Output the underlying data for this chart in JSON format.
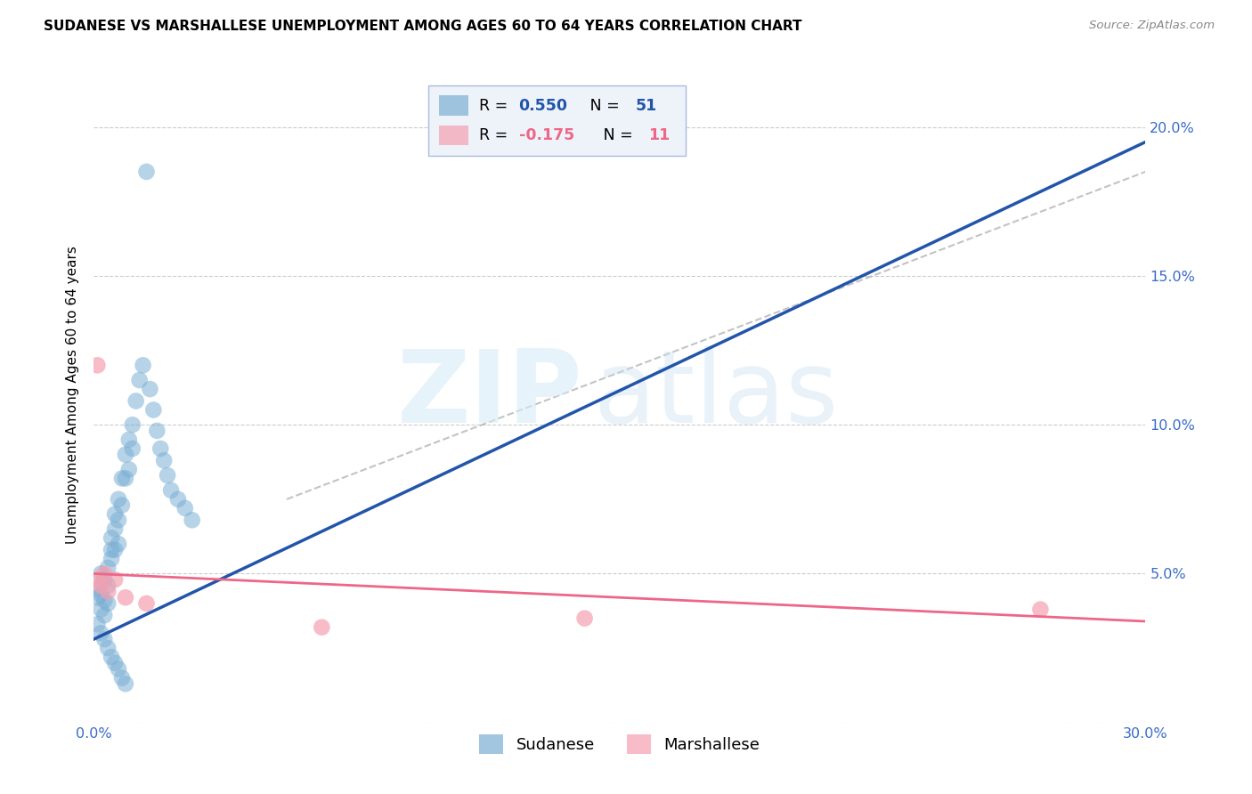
{
  "title": "SUDANESE VS MARSHALLESE UNEMPLOYMENT AMONG AGES 60 TO 64 YEARS CORRELATION CHART",
  "source": "Source: ZipAtlas.com",
  "ylabel": "Unemployment Among Ages 60 to 64 years",
  "xlim": [
    0,
    0.3
  ],
  "ylim": [
    0,
    0.22
  ],
  "sudanese_R": 0.55,
  "sudanese_N": 51,
  "marshallese_R": -0.175,
  "marshallese_N": 11,
  "blue_color": "#7BAFD4",
  "pink_color": "#F4A0B0",
  "line_blue": "#2255AA",
  "line_pink": "#EE6688",
  "legend_box_color": "#EEF3FA",
  "grid_color": "#CCCCCC",
  "title_fontsize": 11,
  "tick_fontsize": 11.5,
  "ylabel_fontsize": 11,
  "sudanese_x": [
    0.001,
    0.001,
    0.002,
    0.002,
    0.002,
    0.003,
    0.003,
    0.003,
    0.004,
    0.004,
    0.004,
    0.005,
    0.005,
    0.005,
    0.006,
    0.006,
    0.006,
    0.007,
    0.007,
    0.007,
    0.008,
    0.008,
    0.009,
    0.009,
    0.01,
    0.01,
    0.011,
    0.011,
    0.012,
    0.013,
    0.014,
    0.015,
    0.016,
    0.017,
    0.018,
    0.019,
    0.02,
    0.021,
    0.022,
    0.024,
    0.026,
    0.028,
    0.001,
    0.002,
    0.003,
    0.004,
    0.005,
    0.006,
    0.007,
    0.008,
    0.009
  ],
  "sudanese_y": [
    0.045,
    0.042,
    0.05,
    0.043,
    0.038,
    0.048,
    0.041,
    0.036,
    0.052,
    0.046,
    0.04,
    0.058,
    0.055,
    0.062,
    0.07,
    0.065,
    0.058,
    0.075,
    0.068,
    0.06,
    0.082,
    0.073,
    0.09,
    0.082,
    0.095,
    0.085,
    0.1,
    0.092,
    0.108,
    0.115,
    0.12,
    0.185,
    0.112,
    0.105,
    0.098,
    0.092,
    0.088,
    0.083,
    0.078,
    0.075,
    0.072,
    0.068,
    0.033,
    0.03,
    0.028,
    0.025,
    0.022,
    0.02,
    0.018,
    0.015,
    0.013
  ],
  "marshallese_x": [
    0.001,
    0.001,
    0.002,
    0.003,
    0.004,
    0.006,
    0.009,
    0.015,
    0.065,
    0.14,
    0.27
  ],
  "marshallese_y": [
    0.048,
    0.12,
    0.046,
    0.05,
    0.044,
    0.048,
    0.042,
    0.04,
    0.032,
    0.035,
    0.038
  ],
  "blue_line_x": [
    0.0,
    0.3
  ],
  "blue_line_y": [
    0.028,
    0.195
  ],
  "pink_line_x": [
    0.0,
    0.3
  ],
  "pink_line_y": [
    0.05,
    0.034
  ],
  "dash_line_x": [
    0.055,
    0.3
  ],
  "dash_line_y": [
    0.075,
    0.185
  ]
}
